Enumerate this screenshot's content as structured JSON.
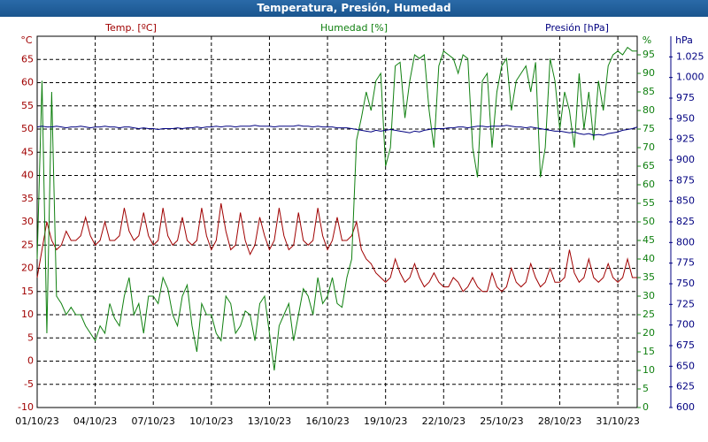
{
  "chart_data": {
    "type": "line",
    "title": "Temperatura, Presión, Humedad",
    "ylabel": "Temp. [ºC]",
    "yunit": "°C",
    "y2label": "Humedad [%]",
    "y2unit": "%",
    "y3label": "Presión [hPa]",
    "y3unit": "hPa",
    "grid": true,
    "x": [
      "2023-10-01T00:00",
      "2023-10-01T06:00",
      "2023-10-01T12:00",
      "2023-10-01T18:00",
      "2023-10-02T00:00",
      "2023-10-02T06:00",
      "2023-10-02T12:00",
      "2023-10-02T18:00",
      "2023-10-03T00:00",
      "2023-10-03T06:00",
      "2023-10-03T12:00",
      "2023-10-03T18:00",
      "2023-10-04T00:00",
      "2023-10-04T06:00",
      "2023-10-04T12:00",
      "2023-10-04T18:00",
      "2023-10-05T00:00",
      "2023-10-05T06:00",
      "2023-10-05T12:00",
      "2023-10-05T18:00",
      "2023-10-06T00:00",
      "2023-10-06T06:00",
      "2023-10-06T12:00",
      "2023-10-06T18:00",
      "2023-10-07T00:00",
      "2023-10-07T06:00",
      "2023-10-07T12:00",
      "2023-10-07T18:00",
      "2023-10-08T00:00",
      "2023-10-08T06:00",
      "2023-10-08T12:00",
      "2023-10-08T18:00",
      "2023-10-09T00:00",
      "2023-10-09T06:00",
      "2023-10-09T12:00",
      "2023-10-09T18:00",
      "2023-10-10T00:00",
      "2023-10-10T06:00",
      "2023-10-10T12:00",
      "2023-10-10T18:00",
      "2023-10-11T00:00",
      "2023-10-11T06:00",
      "2023-10-11T12:00",
      "2023-10-11T18:00",
      "2023-10-12T00:00",
      "2023-10-12T06:00",
      "2023-10-12T12:00",
      "2023-10-12T18:00",
      "2023-10-13T00:00",
      "2023-10-13T06:00",
      "2023-10-13T12:00",
      "2023-10-13T18:00",
      "2023-10-14T00:00",
      "2023-10-14T06:00",
      "2023-10-14T12:00",
      "2023-10-14T18:00",
      "2023-10-15T00:00",
      "2023-10-15T06:00",
      "2023-10-15T12:00",
      "2023-10-15T18:00",
      "2023-10-16T00:00",
      "2023-10-16T06:00",
      "2023-10-16T12:00",
      "2023-10-16T18:00",
      "2023-10-17T00:00",
      "2023-10-17T06:00",
      "2023-10-17T12:00",
      "2023-10-17T18:00",
      "2023-10-18T00:00",
      "2023-10-18T06:00",
      "2023-10-18T12:00",
      "2023-10-18T18:00",
      "2023-10-19T00:00",
      "2023-10-19T06:00",
      "2023-10-19T12:00",
      "2023-10-19T18:00",
      "2023-10-20T00:00",
      "2023-10-20T06:00",
      "2023-10-20T12:00",
      "2023-10-20T18:00",
      "2023-10-21T00:00",
      "2023-10-21T06:00",
      "2023-10-21T12:00",
      "2023-10-21T18:00",
      "2023-10-22T00:00",
      "2023-10-22T06:00",
      "2023-10-22T12:00",
      "2023-10-22T18:00",
      "2023-10-23T00:00",
      "2023-10-23T06:00",
      "2023-10-23T12:00",
      "2023-10-23T18:00",
      "2023-10-24T00:00",
      "2023-10-24T06:00",
      "2023-10-24T12:00",
      "2023-10-24T18:00",
      "2023-10-25T00:00",
      "2023-10-25T06:00",
      "2023-10-25T12:00",
      "2023-10-25T18:00",
      "2023-10-26T00:00",
      "2023-10-26T06:00",
      "2023-10-26T12:00",
      "2023-10-26T18:00",
      "2023-10-27T00:00",
      "2023-10-27T06:00",
      "2023-10-27T12:00",
      "2023-10-27T18:00",
      "2023-10-28T00:00",
      "2023-10-28T06:00",
      "2023-10-28T12:00",
      "2023-10-28T18:00",
      "2023-10-29T00:00",
      "2023-10-29T06:00",
      "2023-10-29T12:00",
      "2023-10-29T18:00",
      "2023-10-30T00:00",
      "2023-10-30T06:00",
      "2023-10-30T12:00",
      "2023-10-30T18:00",
      "2023-10-31T00:00",
      "2023-10-31T06:00",
      "2023-10-31T12:00",
      "2023-10-31T18:00",
      "2023-11-01T00:00"
    ],
    "xlim": [
      "2023-10-01T00:00",
      "2023-11-01T00:00"
    ],
    "xticks": [
      {
        "value": "2023-10-01T00:00",
        "label": "01/10/23"
      },
      {
        "value": "2023-10-04T00:00",
        "label": "04/10/23"
      },
      {
        "value": "2023-10-07T00:00",
        "label": "07/10/23"
      },
      {
        "value": "2023-10-10T00:00",
        "label": "10/10/23"
      },
      {
        "value": "2023-10-13T00:00",
        "label": "13/10/23"
      },
      {
        "value": "2023-10-16T00:00",
        "label": "16/10/23"
      },
      {
        "value": "2023-10-19T00:00",
        "label": "19/10/23"
      },
      {
        "value": "2023-10-22T00:00",
        "label": "22/10/23"
      },
      {
        "value": "2023-10-25T00:00",
        "label": "25/10/23"
      },
      {
        "value": "2023-10-28T00:00",
        "label": "28/10/23"
      },
      {
        "value": "2023-10-31T00:00",
        "label": "31/10/23"
      }
    ],
    "ylim": [
      -10,
      70
    ],
    "yticks": [
      -10,
      -5,
      0,
      5,
      10,
      15,
      20,
      25,
      30,
      35,
      40,
      45,
      50,
      55,
      60,
      65
    ],
    "y2lim": [
      0,
      100
    ],
    "y2ticks": [
      0,
      5,
      10,
      15,
      20,
      25,
      30,
      35,
      40,
      45,
      50,
      55,
      60,
      65,
      70,
      75,
      80,
      85,
      90,
      95
    ],
    "y3lim": [
      600,
      1050
    ],
    "y3ticks": [
      600,
      625,
      650,
      675,
      700,
      725,
      750,
      775,
      800,
      825,
      850,
      875,
      900,
      925,
      950,
      975,
      {
        "value": 1000,
        "label": "1.000"
      },
      {
        "value": 1025,
        "label": "1.025"
      }
    ],
    "series": [
      {
        "name": "Temp. [ºC]",
        "color": "#a00000",
        "axis": "y",
        "values": [
          18,
          24,
          30,
          26,
          24,
          25,
          28,
          26,
          26,
          27,
          31,
          27,
          25,
          26,
          30,
          26,
          26,
          27,
          33,
          28,
          26,
          27,
          32,
          27,
          25,
          26,
          33,
          27,
          25,
          26,
          31,
          26,
          25,
          26,
          33,
          27,
          24,
          26,
          34,
          28,
          24,
          25,
          32,
          26,
          23,
          25,
          31,
          27,
          24,
          26,
          33,
          27,
          24,
          25,
          32,
          26,
          25,
          26,
          33,
          27,
          24,
          26,
          31,
          26,
          26,
          27,
          30,
          24,
          22,
          21,
          19,
          18,
          17,
          18,
          22,
          19,
          17,
          18,
          21,
          18,
          16,
          17,
          19,
          17,
          16,
          16,
          18,
          17,
          15,
          16,
          18,
          16,
          15,
          15,
          19,
          16,
          15,
          16,
          20,
          17,
          16,
          17,
          21,
          18,
          16,
          17,
          20,
          17,
          17,
          18,
          24,
          19,
          17,
          18,
          22,
          18,
          17,
          18,
          21,
          18,
          17,
          18,
          22,
          18,
          18
        ]
      },
      {
        "name": "Humedad [%]",
        "color": "#108010",
        "axis": "y2",
        "values": [
          40,
          88,
          20,
          85,
          30,
          28,
          25,
          27,
          25,
          25,
          22,
          20,
          18,
          22,
          20,
          28,
          24,
          22,
          30,
          35,
          25,
          28,
          20,
          30,
          30,
          28,
          35,
          32,
          25,
          22,
          30,
          33,
          22,
          15,
          28,
          25,
          25,
          20,
          18,
          30,
          28,
          20,
          22,
          26,
          25,
          18,
          28,
          30,
          20,
          10,
          22,
          25,
          28,
          18,
          25,
          32,
          30,
          25,
          35,
          28,
          30,
          35,
          28,
          27,
          35,
          40,
          72,
          78,
          85,
          80,
          88,
          90,
          65,
          70,
          92,
          93,
          78,
          88,
          95,
          94,
          95,
          80,
          70,
          92,
          96,
          95,
          94,
          90,
          95,
          94,
          70,
          62,
          88,
          90,
          70,
          85,
          92,
          94,
          80,
          88,
          90,
          92,
          85,
          93,
          62,
          70,
          94,
          88,
          75,
          85,
          80,
          70,
          90,
          75,
          85,
          72,
          88,
          80,
          92,
          95,
          96,
          95,
          97,
          96,
          96
        ]
      },
      {
        "name": "Presión [hPa]",
        "color": "#000080",
        "axis": "y3",
        "values": [
          940,
          941,
          940,
          940,
          941,
          940,
          939,
          940,
          940,
          941,
          940,
          939,
          940,
          940,
          941,
          940,
          940,
          939,
          940,
          940,
          939,
          938,
          939,
          938,
          938,
          937,
          938,
          938,
          938,
          939,
          938,
          939,
          939,
          940,
          939,
          940,
          940,
          941,
          940,
          941,
          941,
          940,
          941,
          941,
          941,
          942,
          941,
          941,
          941,
          940,
          941,
          941,
          941,
          941,
          942,
          941,
          941,
          940,
          941,
          940,
          940,
          940,
          939,
          939,
          939,
          938,
          937,
          936,
          935,
          934,
          936,
          935,
          936,
          937,
          936,
          935,
          934,
          933,
          935,
          934,
          936,
          937,
          938,
          938,
          938,
          939,
          939,
          940,
          940,
          939,
          940,
          941,
          941,
          940,
          941,
          941,
          941,
          942,
          941,
          940,
          940,
          939,
          940,
          939,
          938,
          937,
          936,
          935,
          935,
          934,
          933,
          934,
          932,
          931,
          932,
          930,
          931,
          930,
          932,
          933,
          934,
          936,
          937,
          938,
          940
        ]
      }
    ]
  }
}
